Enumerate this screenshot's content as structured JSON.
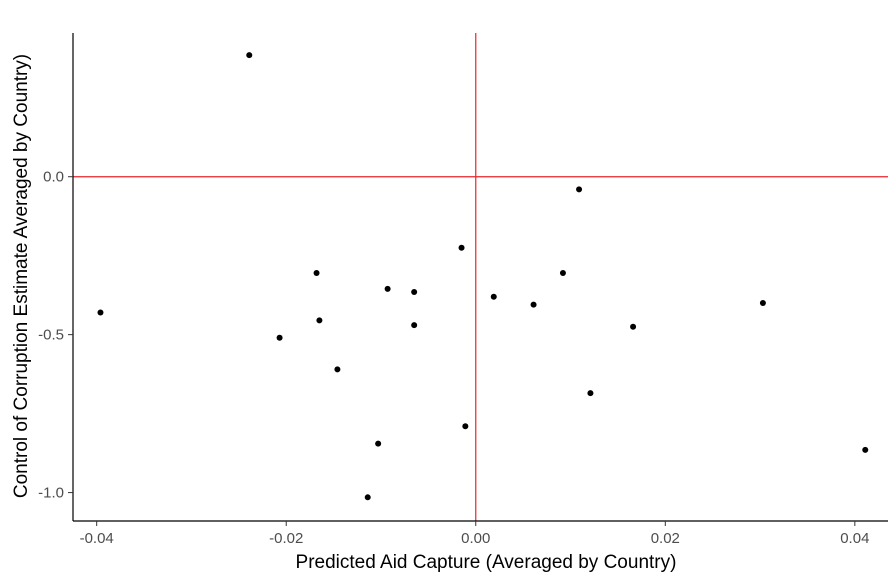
{
  "chart_data": {
    "type": "scatter",
    "title": "",
    "xlabel": "Predicted Aid Capture (Averaged by Country)",
    "ylabel": "Control of Corruption Estimate  Averaged by Country)",
    "xlim": [
      -0.0425,
      0.0435
    ],
    "ylim": [
      -1.09,
      0.455
    ],
    "x_ticks": [
      -0.04,
      -0.02,
      0.0,
      0.02,
      0.04
    ],
    "x_tick_labels": [
      "-0.04",
      "-0.02",
      "0.00",
      "0.02",
      "0.04"
    ],
    "y_ticks": [
      -1.0,
      -0.5,
      0.0
    ],
    "y_tick_labels": [
      "-1.0",
      "-0.5",
      "0.0"
    ],
    "reference_lines": {
      "x": 0.0,
      "y": 0.0,
      "color": "#e8262b"
    },
    "point_color": "#000000",
    "grid": false,
    "points": [
      {
        "x": -0.0396,
        "y": -0.43
      },
      {
        "x": -0.0239,
        "y": 0.385
      },
      {
        "x": -0.0207,
        "y": -0.51
      },
      {
        "x": -0.0168,
        "y": -0.305
      },
      {
        "x": -0.0165,
        "y": -0.455
      },
      {
        "x": -0.0146,
        "y": -0.61
      },
      {
        "x": -0.0114,
        "y": -1.015
      },
      {
        "x": -0.0103,
        "y": -0.845
      },
      {
        "x": -0.0093,
        "y": -0.355
      },
      {
        "x": -0.0065,
        "y": -0.365
      },
      {
        "x": -0.0065,
        "y": -0.47
      },
      {
        "x": -0.0015,
        "y": -0.225
      },
      {
        "x": -0.0011,
        "y": -0.79
      },
      {
        "x": 0.0019,
        "y": -0.38
      },
      {
        "x": 0.0061,
        "y": -0.405
      },
      {
        "x": 0.0092,
        "y": -0.305
      },
      {
        "x": 0.0109,
        "y": -0.04
      },
      {
        "x": 0.0121,
        "y": -0.685
      },
      {
        "x": 0.0166,
        "y": -0.475
      },
      {
        "x": 0.0303,
        "y": -0.4
      },
      {
        "x": 0.0411,
        "y": -0.865
      }
    ]
  }
}
